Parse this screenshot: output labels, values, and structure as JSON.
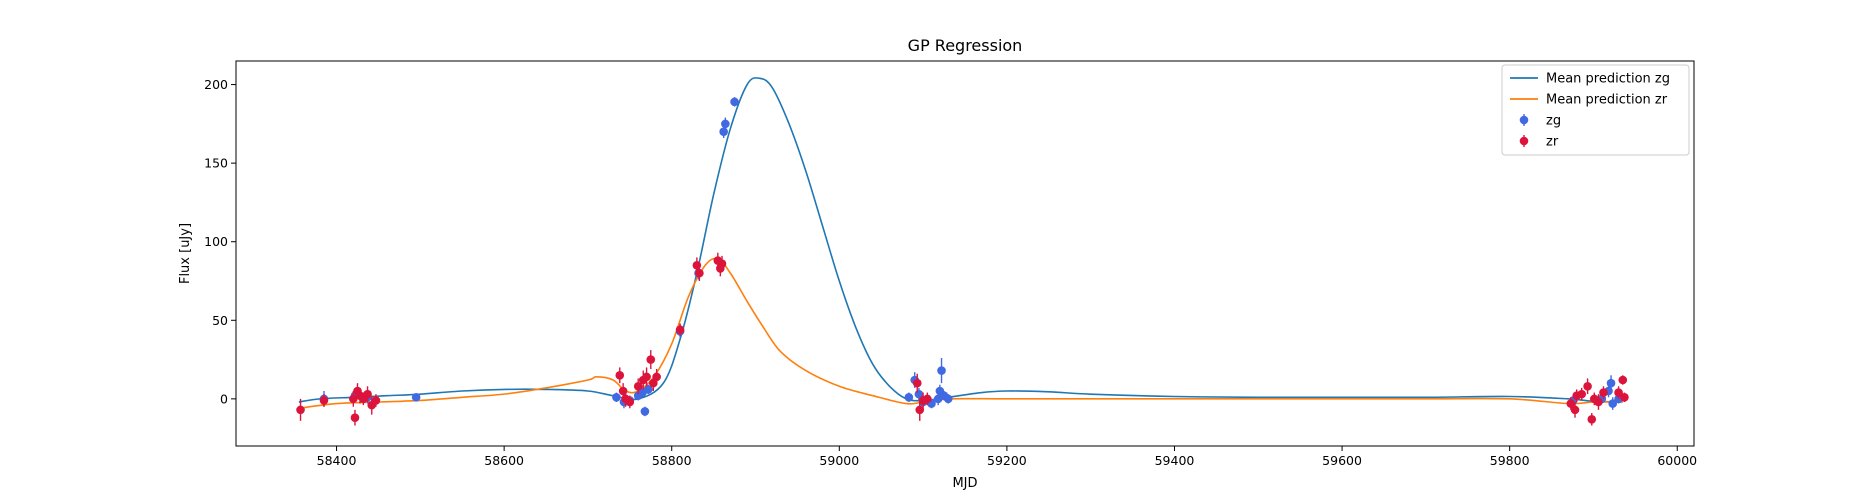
{
  "chart_data": {
    "type": "scatter",
    "title": "GP Regression",
    "xlabel": "MJD",
    "ylabel": "Flux [uJy]",
    "xlim": [
      58280,
      60020
    ],
    "ylim": [
      -30,
      215
    ],
    "xticks": [
      58400,
      58600,
      58800,
      59000,
      59200,
      59400,
      59600,
      59800,
      60000
    ],
    "xtick_labels": [
      "58400",
      "58600",
      "58800",
      "59000",
      "59200",
      "59400",
      "59600",
      "59800",
      "60000"
    ],
    "yticks": [
      0,
      50,
      100,
      150,
      200
    ],
    "ytick_labels": [
      "0",
      "50",
      "100",
      "150",
      "200"
    ],
    "grid": false,
    "legend": {
      "placement": "top-right",
      "entries": [
        {
          "label": "Mean prediction zg",
          "kind": "line",
          "color": "#1f77b4"
        },
        {
          "label": "Mean prediction zr",
          "kind": "line",
          "color": "#ff7f0e"
        },
        {
          "label": "zg",
          "kind": "errorbar",
          "color": "#4169e1"
        },
        {
          "label": "zr",
          "kind": "errorbar",
          "color": "#dc143c"
        }
      ]
    },
    "series": [
      {
        "name": "Mean prediction zg",
        "kind": "line",
        "color": "#1f77b4",
        "x": [
          58355,
          58380,
          58420,
          58460,
          58500,
          58550,
          58600,
          58650,
          58700,
          58730,
          58760,
          58790,
          58810,
          58830,
          58850,
          58870,
          58890,
          58905,
          58920,
          58940,
          58960,
          58980,
          59000,
          59020,
          59040,
          59060,
          59080,
          59100,
          59130,
          59170,
          59200,
          59250,
          59300,
          59400,
          59500,
          59600,
          59700,
          59800,
          59870,
          59900,
          59935
        ],
        "y": [
          -2,
          0,
          1,
          2,
          3,
          5,
          6,
          6,
          5,
          2,
          0,
          10,
          38,
          80,
          130,
          172,
          200,
          204,
          198,
          175,
          145,
          110,
          75,
          45,
          22,
          8,
          0,
          -1,
          1,
          4,
          5,
          4.5,
          3,
          1.5,
          1,
          1,
          1,
          1.5,
          0,
          -1.5,
          -2
        ]
      },
      {
        "name": "Mean prediction zr",
        "kind": "line",
        "color": "#ff7f0e",
        "x": [
          58355,
          58400,
          58450,
          58500,
          58550,
          58600,
          58650,
          58700,
          58710,
          58730,
          58745,
          58760,
          58780,
          58800,
          58820,
          58840,
          58855,
          58870,
          58890,
          58910,
          58930,
          58960,
          59000,
          59040,
          59080,
          59100,
          59130,
          59200,
          59300,
          59400,
          59500,
          59600,
          59700,
          59800,
          59870,
          59900,
          59935
        ],
        "y": [
          -6,
          -3,
          -2,
          -1,
          1,
          3,
          7,
          12,
          14,
          12,
          5,
          5,
          15,
          35,
          65,
          85,
          89,
          80,
          62,
          45,
          30,
          18,
          8,
          2,
          -3,
          -2,
          0,
          0,
          0,
          0,
          0,
          0,
          0,
          0,
          -3,
          -2,
          -2
        ]
      },
      {
        "name": "zg",
        "kind": "errorbar",
        "color": "#4169e1",
        "points": [
          [
            58385,
            0,
            5
          ],
          [
            58422,
            2,
            4
          ],
          [
            58437,
            1,
            4
          ],
          [
            58495,
            1,
            2
          ],
          [
            58734,
            1,
            3
          ],
          [
            58743,
            -2,
            4
          ],
          [
            58750,
            -1,
            3
          ],
          [
            58760,
            2,
            3
          ],
          [
            58765,
            4,
            3
          ],
          [
            58768,
            -8,
            3
          ],
          [
            58772,
            6,
            3
          ],
          [
            58810,
            43,
            4
          ],
          [
            58832,
            80,
            4
          ],
          [
            58862,
            170,
            4
          ],
          [
            58864,
            175,
            4
          ],
          [
            58875,
            189,
            3
          ],
          [
            59083,
            1,
            3
          ],
          [
            59090,
            12,
            5
          ],
          [
            59095,
            3,
            4
          ],
          [
            59100,
            -2,
            3
          ],
          [
            59110,
            -3,
            3
          ],
          [
            59118,
            0,
            4
          ],
          [
            59120,
            5,
            4
          ],
          [
            59122,
            18,
            8
          ],
          [
            59125,
            2,
            3
          ],
          [
            59130,
            0,
            3
          ],
          [
            59876,
            -1,
            3
          ],
          [
            59910,
            0,
            3
          ],
          [
            59918,
            5,
            4
          ],
          [
            59921,
            10,
            5
          ],
          [
            59923,
            -3,
            4
          ],
          [
            59930,
            0,
            3
          ]
        ]
      },
      {
        "name": "zr",
        "kind": "errorbar",
        "color": "#dc143c",
        "points": [
          [
            58357,
            -7,
            7
          ],
          [
            58385,
            -1,
            4
          ],
          [
            58420,
            0,
            5
          ],
          [
            58422,
            -12,
            5
          ],
          [
            58425,
            5,
            5
          ],
          [
            58428,
            2,
            5
          ],
          [
            58432,
            0,
            4
          ],
          [
            58437,
            3,
            5
          ],
          [
            58442,
            -4,
            6
          ],
          [
            58447,
            -1,
            4
          ],
          [
            58738,
            15,
            5
          ],
          [
            58742,
            5,
            5
          ],
          [
            58745,
            0,
            5
          ],
          [
            58750,
            -2,
            4
          ],
          [
            58760,
            8,
            5
          ],
          [
            58766,
            12,
            6
          ],
          [
            58770,
            14,
            6
          ],
          [
            58775,
            25,
            6
          ],
          [
            58778,
            10,
            5
          ],
          [
            58782,
            14,
            5
          ],
          [
            58810,
            44,
            4
          ],
          [
            58830,
            85,
            5
          ],
          [
            58833,
            80,
            5
          ],
          [
            58855,
            88,
            5
          ],
          [
            58858,
            83,
            5
          ],
          [
            58860,
            86,
            5
          ],
          [
            59093,
            10,
            6
          ],
          [
            59096,
            -7,
            7
          ],
          [
            59100,
            -1,
            5
          ],
          [
            59105,
            0,
            4
          ],
          [
            59873,
            -3,
            4
          ],
          [
            59878,
            -7,
            5
          ],
          [
            59880,
            2,
            4
          ],
          [
            59886,
            3,
            4
          ],
          [
            59893,
            8,
            5
          ],
          [
            59898,
            -13,
            4
          ],
          [
            59901,
            0,
            4
          ],
          [
            59906,
            -2,
            5
          ],
          [
            59912,
            4,
            4
          ],
          [
            59930,
            4,
            4
          ],
          [
            59935,
            12,
            3
          ],
          [
            59937,
            1,
            3
          ]
        ]
      }
    ]
  }
}
